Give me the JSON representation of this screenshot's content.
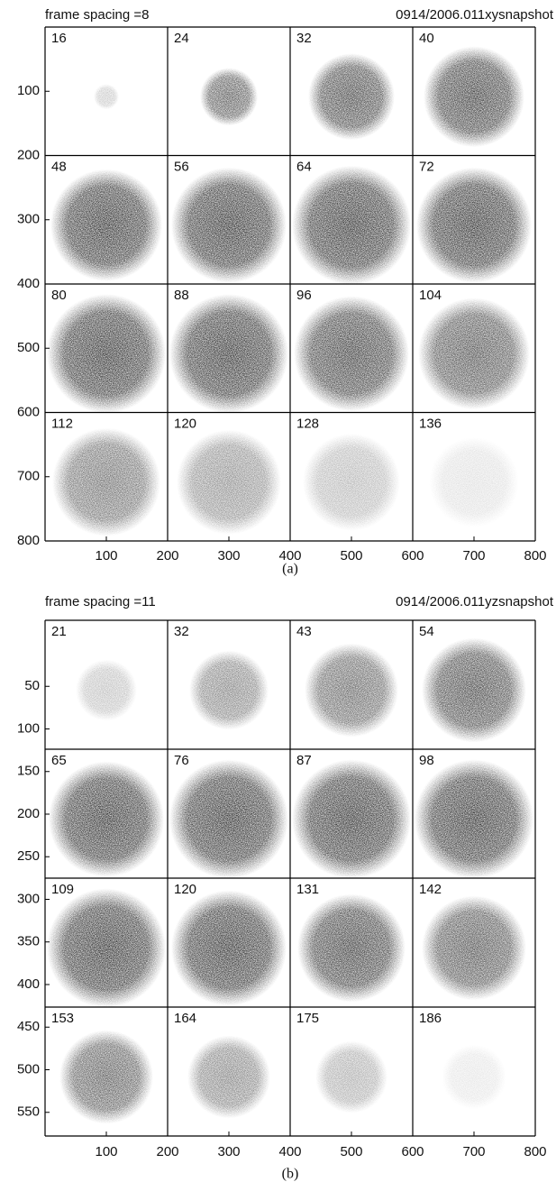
{
  "panels": [
    {
      "header": {
        "left": "frame spacing =8",
        "right": "0914/2006.011xysnapshot"
      },
      "frames": [
        "16",
        "24",
        "32",
        "40",
        "48",
        "56",
        "64",
        "72",
        "80",
        "88",
        "96",
        "104",
        "112",
        "120",
        "128",
        "136"
      ],
      "yticks": [
        "100",
        "200",
        "300",
        "400",
        "500",
        "600",
        "700",
        "800"
      ],
      "xticks": [
        "100",
        "200",
        "300",
        "400",
        "500",
        "600",
        "700",
        "800"
      ],
      "caption": "(a)"
    },
    {
      "header": {
        "left": "frame spacing =11",
        "right": "0914/2006.011yzsnapshot"
      },
      "frames": [
        "21",
        "32",
        "43",
        "54",
        "65",
        "76",
        "87",
        "98",
        "109",
        "120",
        "131",
        "142",
        "153",
        "164",
        "175",
        "186"
      ],
      "yticks": [
        "50",
        "100",
        "150",
        "200",
        "250",
        "300",
        "350",
        "400",
        "450",
        "500",
        "550"
      ],
      "xticks": [
        "100",
        "200",
        "300",
        "400",
        "500",
        "600",
        "700",
        "800"
      ],
      "caption": "(b)"
    }
  ]
}
